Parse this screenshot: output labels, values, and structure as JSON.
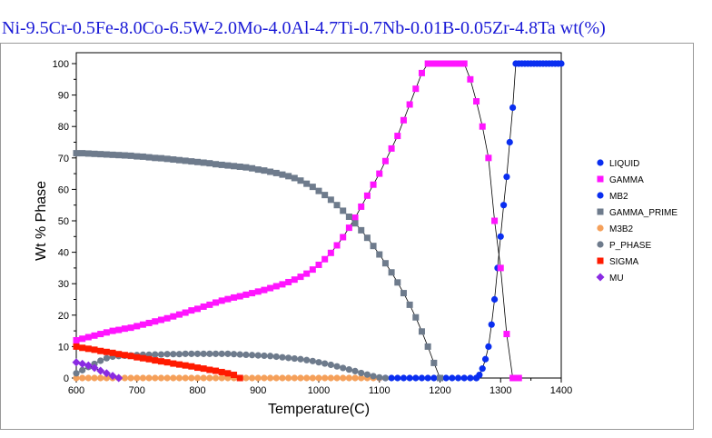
{
  "title": "Ni-9.5Cr-0.5Fe-8.0Co-6.5W-2.0Mo-4.0Al-4.7Ti-0.7Nb-0.01B-0.05Zr-4.8Ta wt(%)",
  "chart_data": {
    "type": "line",
    "xlabel": "Temperature(C)",
    "ylabel": "Wt % Phase",
    "xlim": [
      600,
      1400
    ],
    "ylim": [
      0,
      100
    ],
    "xticks": [
      600,
      700,
      800,
      900,
      1000,
      1100,
      1200,
      1300,
      1400
    ],
    "yticks": [
      0,
      10,
      20,
      30,
      40,
      50,
      60,
      70,
      80,
      90,
      100
    ],
    "grid": false,
    "legend_position": "right",
    "series": [
      {
        "name": "LIQUID",
        "color": "#0a2ef0",
        "marker": "circle",
        "x": [
          1260,
          1265,
          1270,
          1275,
          1280,
          1285,
          1290,
          1295,
          1300,
          1305,
          1310,
          1315,
          1320,
          1325,
          1330,
          1335,
          1340,
          1345,
          1350,
          1355,
          1360,
          1365,
          1370,
          1375,
          1380,
          1385,
          1390,
          1395,
          1400
        ],
        "y": [
          0,
          1,
          3,
          6,
          10,
          17,
          25,
          35,
          45,
          55,
          64,
          75,
          86,
          100,
          100,
          100,
          100,
          100,
          100,
          100,
          100,
          100,
          100,
          100,
          100,
          100,
          100,
          100,
          100
        ]
      },
      {
        "name": "GAMMA",
        "color": "#ff14ff",
        "marker": "square",
        "x": [
          600,
          610,
          620,
          630,
          640,
          650,
          660,
          670,
          680,
          690,
          700,
          710,
          720,
          730,
          740,
          750,
          760,
          770,
          780,
          790,
          800,
          810,
          820,
          830,
          840,
          850,
          860,
          870,
          880,
          890,
          900,
          910,
          920,
          930,
          940,
          950,
          960,
          970,
          980,
          990,
          1000,
          1010,
          1020,
          1030,
          1040,
          1050,
          1060,
          1070,
          1080,
          1090,
          1100,
          1110,
          1120,
          1130,
          1140,
          1150,
          1160,
          1170,
          1180,
          1190,
          1195,
          1200,
          1210,
          1220,
          1230,
          1240,
          1250,
          1260,
          1270,
          1280,
          1290,
          1300,
          1310,
          1320,
          1330
        ],
        "y": [
          12,
          12.5,
          13,
          13.5,
          14,
          14.5,
          15,
          15.3,
          15.7,
          16,
          16.5,
          17,
          17.5,
          18,
          18.5,
          19,
          19.6,
          20.2,
          20.8,
          21.5,
          22,
          22.7,
          23.3,
          24,
          24.6,
          25.1,
          25.6,
          26,
          26.5,
          27,
          27.5,
          28,
          28.6,
          29.2,
          29.8,
          30.5,
          31.3,
          32.2,
          33.2,
          34.5,
          36,
          37.8,
          39.8,
          42.2,
          44.8,
          47.8,
          51,
          54.5,
          58,
          61.5,
          65,
          69,
          73,
          77,
          82,
          87,
          92,
          97,
          100,
          100,
          100,
          100,
          100,
          100,
          100,
          100,
          95,
          88,
          80,
          70,
          50,
          35,
          14,
          0,
          0
        ]
      },
      {
        "name": "MB2",
        "color": "#0a2ef0",
        "marker": "circle",
        "x": [
          1100,
          1110,
          1120,
          1130,
          1140,
          1150,
          1160,
          1170,
          1180,
          1190,
          1200,
          1210,
          1220,
          1230,
          1240,
          1250,
          1260
        ],
        "y": [
          0,
          0,
          0,
          0,
          0,
          0,
          0,
          0,
          0,
          0,
          0,
          0,
          0,
          0,
          0,
          0,
          0
        ]
      },
      {
        "name": "GAMMA_PRIME",
        "color": "#6e7b8c",
        "marker": "square",
        "x": [
          600,
          610,
          620,
          630,
          640,
          650,
          660,
          670,
          680,
          690,
          700,
          710,
          720,
          730,
          740,
          750,
          760,
          770,
          780,
          790,
          800,
          810,
          820,
          830,
          840,
          850,
          860,
          870,
          880,
          890,
          900,
          910,
          920,
          930,
          940,
          950,
          960,
          970,
          980,
          990,
          1000,
          1010,
          1020,
          1030,
          1040,
          1050,
          1060,
          1070,
          1080,
          1090,
          1100,
          1110,
          1120,
          1130,
          1140,
          1150,
          1160,
          1170,
          1180,
          1190,
          1200
        ],
        "y": [
          71.5,
          71.5,
          71.4,
          71.3,
          71.2,
          71.1,
          71,
          70.9,
          70.8,
          70.7,
          70.5,
          70.4,
          70.2,
          70,
          69.9,
          69.7,
          69.5,
          69.3,
          69.1,
          68.9,
          68.7,
          68.5,
          68.3,
          68,
          67.8,
          67.6,
          67.4,
          67.2,
          67,
          66.7,
          66.3,
          66,
          65.6,
          65.2,
          64.7,
          64.2,
          63.6,
          62.8,
          61.8,
          60.8,
          59.5,
          58.2,
          56.7,
          55,
          53.2,
          51.3,
          49.2,
          47,
          44.6,
          42,
          39.3,
          36.5,
          33.6,
          30.4,
          27,
          23.3,
          19.3,
          14.8,
          10,
          4.8,
          0
        ]
      },
      {
        "name": "M3B2",
        "color": "#f5a05a",
        "marker": "circle",
        "x": [
          600,
          610,
          620,
          630,
          640,
          650,
          660,
          670,
          680,
          690,
          700,
          710,
          720,
          730,
          740,
          750,
          760,
          770,
          780,
          790,
          800,
          810,
          820,
          830,
          840,
          850,
          860,
          870,
          880,
          890,
          900,
          910,
          920,
          930,
          940,
          950,
          960,
          970,
          980,
          990,
          1000,
          1010,
          1020,
          1030,
          1040,
          1050,
          1060,
          1070,
          1080,
          1090,
          1100
        ],
        "y": [
          0,
          0,
          0,
          0,
          0,
          0,
          0,
          0,
          0,
          0,
          0,
          0,
          0,
          0,
          0,
          0,
          0,
          0,
          0,
          0,
          0,
          0,
          0,
          0,
          0,
          0,
          0,
          0,
          0,
          0,
          0,
          0,
          0,
          0,
          0,
          0,
          0,
          0,
          0,
          0,
          0,
          0,
          0,
          0,
          0,
          0,
          0,
          0,
          0,
          0,
          0
        ]
      },
      {
        "name": "P_PHASE",
        "color": "#6e7b8c",
        "marker": "circle",
        "x": [
          600,
          610,
          620,
          630,
          640,
          650,
          660,
          670,
          680,
          690,
          700,
          710,
          720,
          730,
          740,
          750,
          760,
          770,
          780,
          790,
          800,
          810,
          820,
          830,
          840,
          850,
          860,
          870,
          880,
          890,
          900,
          910,
          920,
          930,
          940,
          950,
          960,
          970,
          980,
          990,
          1000,
          1010,
          1020,
          1030,
          1040,
          1050,
          1060,
          1070,
          1080,
          1090,
          1100,
          1110
        ],
        "y": [
          1.5,
          2.5,
          3.5,
          4.5,
          5.5,
          6.3,
          6.8,
          7,
          7.1,
          7.2,
          7.3,
          7.4,
          7.4,
          7.5,
          7.5,
          7.6,
          7.6,
          7.6,
          7.7,
          7.7,
          7.7,
          7.7,
          7.7,
          7.7,
          7.7,
          7.7,
          7.6,
          7.5,
          7.4,
          7.3,
          7.2,
          7.1,
          7,
          6.8,
          6.6,
          6.4,
          6.2,
          6,
          5.7,
          5.4,
          5,
          4.6,
          4.2,
          3.7,
          3.2,
          2.7,
          2.2,
          1.6,
          1.1,
          0.6,
          0.2,
          0
        ]
      },
      {
        "name": "SIGMA",
        "color": "#ff1a00",
        "marker": "square",
        "x": [
          600,
          610,
          620,
          630,
          640,
          650,
          660,
          670,
          680,
          690,
          700,
          710,
          720,
          730,
          740,
          750,
          760,
          770,
          780,
          790,
          800,
          810,
          820,
          830,
          840,
          850,
          860,
          870
        ],
        "y": [
          10,
          9.6,
          9.3,
          9,
          8.6,
          8.3,
          8,
          7.6,
          7.3,
          7,
          6.6,
          6.3,
          6,
          5.6,
          5.3,
          5,
          4.6,
          4.3,
          4,
          3.7,
          3.3,
          3,
          2.6,
          2.3,
          1.9,
          1.5,
          1,
          0
        ]
      },
      {
        "name": "MU",
        "color": "#8a2be2",
        "marker": "diamond",
        "x": [
          600,
          610,
          620,
          630,
          640,
          650,
          660,
          670
        ],
        "y": [
          5,
          4.5,
          4,
          3.2,
          2.3,
          1.5,
          0.7,
          0
        ]
      }
    ]
  }
}
